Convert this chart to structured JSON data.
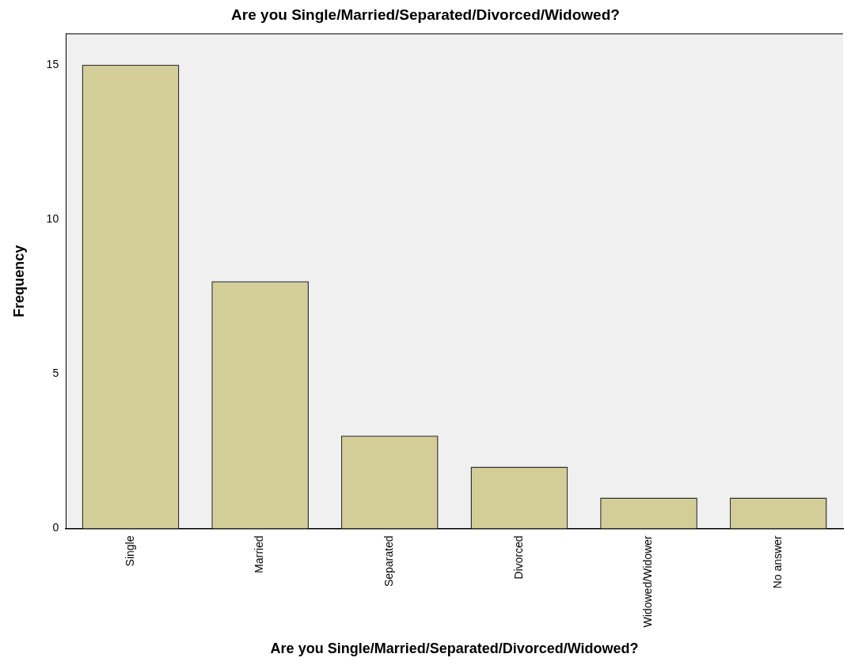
{
  "chart_data": {
    "type": "bar",
    "title": "Are you Single/Married/Separated/Divorced/Widowed?",
    "xlabel": "Are you Single/Married/Separated/Divorced/Widowed?",
    "ylabel": "Frequency",
    "categories": [
      "Single",
      "Married",
      "Separated",
      "Divorced",
      "Widowed/Widower",
      "No answer"
    ],
    "values": [
      15,
      8,
      3,
      2,
      1,
      1
    ],
    "color": "#d3ce97",
    "ylim": [
      0,
      16
    ],
    "yticks": [
      0,
      5,
      10,
      15
    ],
    "grid": false,
    "legend": false
  }
}
